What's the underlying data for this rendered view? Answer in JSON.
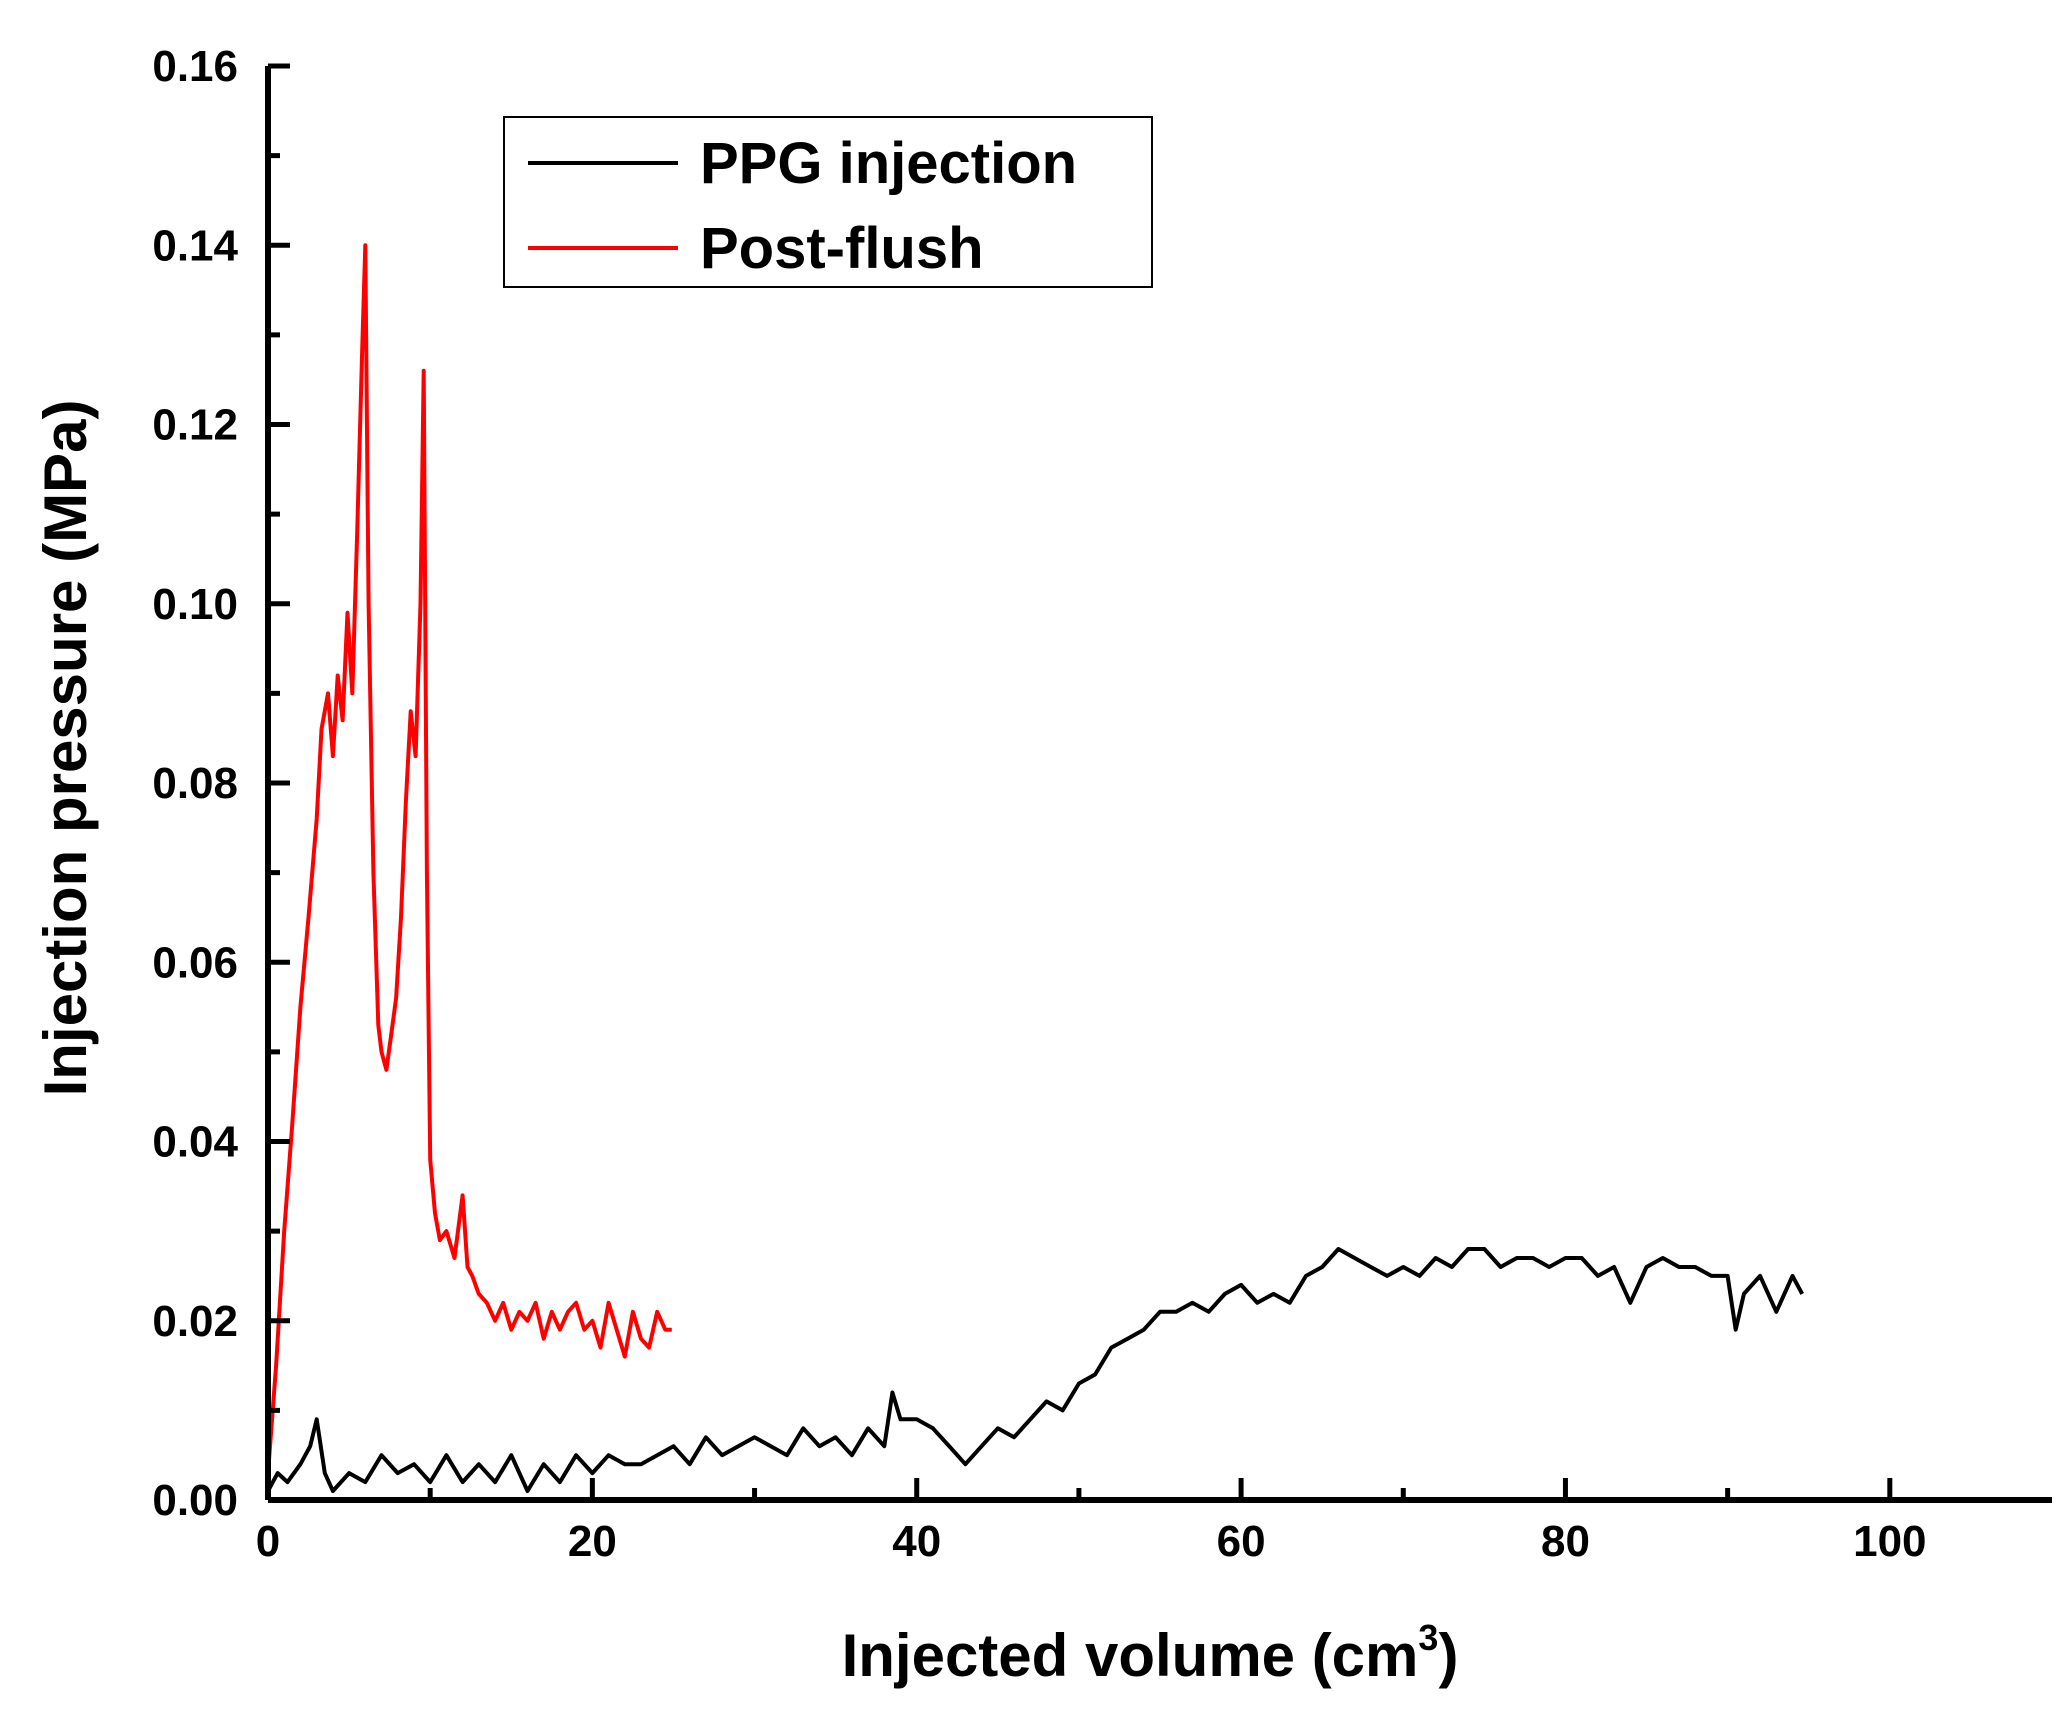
{
  "chart_data": {
    "type": "line",
    "title": "",
    "xlabel": "Injected volume (cm",
    "xlabel_sup": "3",
    "xlabel_tail": ")",
    "ylabel": "Injection pressure (MPa)",
    "xlim": [
      0,
      110
    ],
    "ylim": [
      0,
      0.16
    ],
    "xticks": [
      0,
      20,
      40,
      60,
      80,
      100
    ],
    "xtick_labels": [
      "0",
      "20",
      "40",
      "60",
      "80",
      "100"
    ],
    "yticks": [
      0,
      0.02,
      0.04,
      0.06,
      0.08,
      0.1,
      0.12,
      0.14,
      0.16
    ],
    "ytick_labels": [
      "0.00",
      "0.02",
      "0.04",
      "0.06",
      "0.08",
      "0.10",
      "0.12",
      "0.14",
      "0.16"
    ],
    "legend_position": "top-left",
    "series": [
      {
        "name": "PPG injection",
        "color": "#000000",
        "x": [
          0,
          0.6,
          1.2,
          2,
          2.6,
          3,
          3.5,
          4,
          5,
          6,
          7,
          8,
          9,
          10,
          11,
          12,
          13,
          14,
          15,
          16,
          17,
          18,
          19,
          20,
          21,
          22,
          23,
          24,
          25,
          26,
          27,
          28,
          29,
          30,
          31,
          32,
          33,
          34,
          35,
          36,
          37,
          38,
          38.5,
          39,
          40,
          41,
          42,
          43,
          44,
          45,
          46,
          47,
          48,
          49,
          50,
          51,
          52,
          53,
          54,
          55,
          56,
          57,
          58,
          59,
          60,
          61,
          62,
          63,
          64,
          65,
          66,
          67,
          68,
          69,
          70,
          71,
          72,
          73,
          74,
          75,
          76,
          77,
          78,
          79,
          80,
          81,
          82,
          83,
          84,
          85,
          86,
          87,
          88,
          89,
          90,
          90.5,
          91,
          92,
          93,
          94,
          94.6
        ],
        "y": [
          0.001,
          0.003,
          0.002,
          0.004,
          0.006,
          0.009,
          0.003,
          0.001,
          0.003,
          0.002,
          0.005,
          0.003,
          0.004,
          0.002,
          0.005,
          0.002,
          0.004,
          0.002,
          0.005,
          0.001,
          0.004,
          0.002,
          0.005,
          0.003,
          0.005,
          0.004,
          0.004,
          0.005,
          0.006,
          0.004,
          0.007,
          0.005,
          0.006,
          0.007,
          0.006,
          0.005,
          0.008,
          0.006,
          0.007,
          0.005,
          0.008,
          0.006,
          0.012,
          0.009,
          0.009,
          0.008,
          0.006,
          0.004,
          0.006,
          0.008,
          0.007,
          0.009,
          0.011,
          0.01,
          0.013,
          0.014,
          0.017,
          0.018,
          0.019,
          0.021,
          0.021,
          0.022,
          0.021,
          0.023,
          0.024,
          0.022,
          0.023,
          0.022,
          0.025,
          0.026,
          0.028,
          0.027,
          0.026,
          0.025,
          0.026,
          0.025,
          0.027,
          0.026,
          0.028,
          0.028,
          0.026,
          0.027,
          0.027,
          0.026,
          0.027,
          0.027,
          0.025,
          0.026,
          0.022,
          0.026,
          0.027,
          0.026,
          0.026,
          0.025,
          0.025,
          0.019,
          0.023,
          0.025,
          0.021,
          0.025,
          0.023
        ]
      },
      {
        "name": "Post-flush",
        "color": "#ff0000",
        "x": [
          0,
          0.5,
          1,
          1.5,
          2,
          2.5,
          3,
          3.3,
          3.7,
          4,
          4.3,
          4.6,
          4.9,
          5.2,
          5.5,
          5.8,
          6,
          6.2,
          6.5,
          6.8,
          7,
          7.3,
          7.6,
          7.9,
          8.2,
          8.5,
          8.8,
          9.1,
          9.4,
          9.6,
          9.8,
          10,
          10.3,
          10.6,
          11,
          11.5,
          12,
          12.3,
          12.6,
          13,
          13.5,
          14,
          14.5,
          15,
          15.5,
          16,
          16.5,
          17,
          17.5,
          18,
          18.5,
          19,
          19.5,
          20,
          20.5,
          21,
          21.5,
          22,
          22.5,
          23,
          23.5,
          24,
          24.5,
          24.9
        ],
        "y": [
          0.003,
          0.015,
          0.03,
          0.042,
          0.055,
          0.065,
          0.076,
          0.086,
          0.09,
          0.083,
          0.092,
          0.087,
          0.099,
          0.09,
          0.108,
          0.128,
          0.14,
          0.1,
          0.07,
          0.053,
          0.05,
          0.048,
          0.052,
          0.056,
          0.065,
          0.078,
          0.088,
          0.083,
          0.1,
          0.126,
          0.07,
          0.038,
          0.032,
          0.029,
          0.03,
          0.027,
          0.034,
          0.026,
          0.025,
          0.023,
          0.022,
          0.02,
          0.022,
          0.019,
          0.021,
          0.02,
          0.022,
          0.018,
          0.021,
          0.019,
          0.021,
          0.022,
          0.019,
          0.02,
          0.017,
          0.022,
          0.019,
          0.016,
          0.021,
          0.018,
          0.017,
          0.021,
          0.019,
          0.019
        ]
      }
    ]
  }
}
